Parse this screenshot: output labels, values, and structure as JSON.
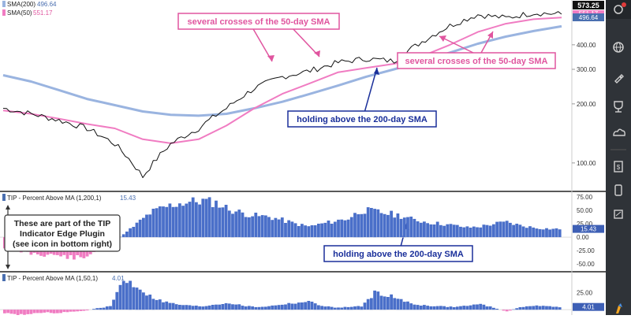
{
  "chart_data": {
    "type": "line",
    "main_panel": {
      "legend": [
        {
          "label": "SMA(200)",
          "value": "496.64",
          "color": "#9ab4e0"
        },
        {
          "label": "SMA(50)",
          "value": "551.17",
          "color": "#f07cc2"
        }
      ],
      "price_tags": [
        {
          "value": "573.25",
          "bg": "#111111",
          "fg": "#ffffff"
        },
        {
          "value": "551.17",
          "bg": "#f07cc2",
          "fg": "#ffffff"
        },
        {
          "value": "496.64",
          "bg": "#4a6fb0",
          "fg": "#ffffff"
        }
      ],
      "y_axis": {
        "scale": "log",
        "ticks": [
          "100.00",
          "200.00",
          "300.00",
          "400.00"
        ]
      },
      "series": [
        {
          "name": "Price",
          "color": "#111111",
          "values": [
            190,
            178,
            165,
            150,
            125,
            85,
            125,
            150,
            190,
            240,
            275,
            295,
            325,
            340,
            330,
            415,
            500,
            570,
            548,
            582,
            573
          ]
        },
        {
          "name": "SMA(50)",
          "color": "#f07cc2",
          "values": [
            185,
            178,
            168,
            158,
            150,
            132,
            126,
            132,
            155,
            190,
            225,
            255,
            290,
            305,
            320,
            350,
            400,
            465,
            512,
            540,
            551
          ]
        },
        {
          "name": "SMA(200)",
          "color": "#9ab4e0",
          "values": [
            280,
            260,
            235,
            212,
            197,
            183,
            176,
            174,
            178,
            190,
            205,
            225,
            248,
            275,
            300,
            330,
            365,
            405,
            440,
            470,
            497
          ]
        }
      ]
    },
    "annotations": {
      "top": "several crosses of the 50-day SMA",
      "right": "several crosses of the 50-day SMA",
      "middle": "holding above the 200-day SMA",
      "lower": "holding above the 200-day SMA",
      "note": "These are part of the TIP Indicator Edge Plugin (see icon in bottom right)"
    },
    "panels": [
      {
        "type": "bar",
        "title": "TIP - Percent Above MA (1,200,1)",
        "last_value": "15.43",
        "y_ticks": [
          "75.00",
          "50.00",
          "25.00",
          "0.00",
          "-25.00",
          "-50.00"
        ],
        "ylim": [
          -60,
          78
        ],
        "values": [
          -20,
          -25,
          -30,
          -32,
          -34,
          -38,
          -40,
          -22,
          -12,
          5,
          25,
          45,
          55,
          62,
          66,
          68,
          64,
          52,
          45,
          40,
          38,
          32,
          25,
          20,
          25,
          30,
          35,
          50,
          48,
          44,
          40,
          32,
          28,
          25,
          22,
          18,
          20,
          25,
          28,
          22,
          18,
          16,
          15
        ]
      },
      {
        "type": "bar",
        "title": "TIP - Percent Above MA (1,50,1)",
        "last_value": "4.01",
        "y_ticks": [
          "25.00"
        ],
        "ylim": [
          -8,
          48
        ],
        "values": [
          -5,
          -8,
          -6,
          -4,
          -5,
          -3,
          -2,
          2,
          5,
          45,
          35,
          20,
          12,
          8,
          6,
          5,
          8,
          10,
          6,
          4,
          5,
          8,
          10,
          12,
          6,
          3,
          4,
          5,
          25,
          22,
          14,
          8,
          6,
          5,
          4,
          6,
          8,
          3,
          -3,
          4,
          6,
          5,
          4
        ]
      }
    ]
  }
}
